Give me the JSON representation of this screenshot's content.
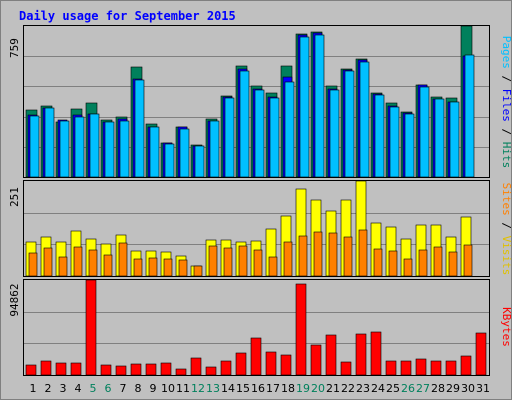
{
  "colors": {
    "background": "#c0c0c0",
    "title": "#0000ff",
    "hits": "#00805c",
    "files": "#0000ff",
    "pages": "#00c0ff",
    "visits": "#ffff00",
    "sites": "#ff8000",
    "kbytes": "#ff0000",
    "weekend_day": "#00805c",
    "weekday": "#000000"
  },
  "chart_data": [
    {
      "type": "bar",
      "title": "Daily usage for September 2015",
      "panel": "hits-files-pages",
      "ymax_label": "759",
      "ylim": [
        0,
        759
      ],
      "categories": [
        "1",
        "2",
        "3",
        "4",
        "5",
        "6",
        "7",
        "8",
        "9",
        "10",
        "11",
        "12",
        "13",
        "14",
        "15",
        "16",
        "17",
        "18",
        "19",
        "20",
        "21",
        "22",
        "23",
        "24",
        "25",
        "26",
        "27",
        "28",
        "29",
        "30",
        "31"
      ],
      "weekend_days": [
        "5",
        "6",
        "12",
        "13",
        "19",
        "20",
        "26",
        "27"
      ],
      "legend": [
        "Pages",
        "Files",
        "Hits"
      ],
      "series": [
        {
          "name": "Hits",
          "values": [
            335,
            358,
            278,
            340,
            372,
            287,
            300,
            552,
            264,
            172,
            253,
            159,
            292,
            406,
            557,
            455,
            420,
            557,
            719,
            727,
            456,
            544,
            594,
            423,
            371,
            329,
            463,
            401,
            398,
            759,
            0
          ]
        },
        {
          "name": "Files",
          "values": [
            310,
            349,
            285,
            314,
            317,
            277,
            294,
            492,
            250,
            170,
            250,
            157,
            282,
            404,
            542,
            442,
            402,
            502,
            712,
            722,
            444,
            540,
            588,
            417,
            357,
            320,
            463,
            392,
            379,
            610,
            0
          ]
        },
        {
          "name": "Pages",
          "values": [
            305,
            347,
            280,
            302,
            316,
            276,
            283,
            486,
            249,
            165,
            239,
            155,
            283,
            396,
            532,
            436,
            398,
            480,
            705,
            716,
            436,
            534,
            576,
            413,
            352,
            316,
            453,
            390,
            376,
            615,
            0
          ]
        }
      ]
    },
    {
      "type": "bar",
      "panel": "visits-sites",
      "ymax_label": "251",
      "ylim": [
        0,
        251
      ],
      "categories": [
        "1",
        "2",
        "3",
        "4",
        "5",
        "6",
        "7",
        "8",
        "9",
        "10",
        "11",
        "12",
        "13",
        "14",
        "15",
        "16",
        "17",
        "18",
        "19",
        "20",
        "21",
        "22",
        "23",
        "24",
        "25",
        "26",
        "27",
        "28",
        "29",
        "30",
        "31"
      ],
      "legend": [
        "Sites",
        "Visits"
      ],
      "series": [
        {
          "name": "Visits",
          "values": [
            91,
            104,
            90,
            120,
            98,
            85,
            109,
            67,
            66,
            63,
            54,
            26,
            96,
            94,
            91,
            92,
            125,
            158,
            230,
            201,
            171,
            202,
            250,
            139,
            129,
            98,
            135,
            135,
            104,
            157,
            0
          ]
        },
        {
          "name": "Sites",
          "values": [
            62,
            74,
            50,
            77,
            68,
            56,
            87,
            44,
            47,
            44,
            41,
            26,
            78,
            73,
            80,
            70,
            51,
            90,
            105,
            115,
            114,
            102,
            121,
            71,
            67,
            46,
            70,
            76,
            64,
            81,
            0
          ]
        }
      ]
    },
    {
      "type": "bar",
      "panel": "kbytes",
      "ymax_label": "94862",
      "ylim": [
        0,
        94862
      ],
      "categories": [
        "1",
        "2",
        "3",
        "4",
        "5",
        "6",
        "7",
        "8",
        "9",
        "10",
        "11",
        "12",
        "13",
        "14",
        "15",
        "16",
        "17",
        "18",
        "19",
        "20",
        "21",
        "22",
        "23",
        "24",
        "25",
        "26",
        "27",
        "28",
        "29",
        "30",
        "31"
      ],
      "legend": [
        "KBytes"
      ],
      "series": [
        {
          "name": "KBytes",
          "values": [
            10300,
            13600,
            11500,
            11700,
            94800,
            9800,
            8500,
            11100,
            10800,
            11700,
            6000,
            17300,
            7900,
            13600,
            22200,
            37300,
            23300,
            20400,
            90600,
            29800,
            39600,
            13400,
            41200,
            43000,
            13600,
            13600,
            16400,
            13800,
            13600,
            18600,
            42100
          ]
        }
      ]
    }
  ]
}
